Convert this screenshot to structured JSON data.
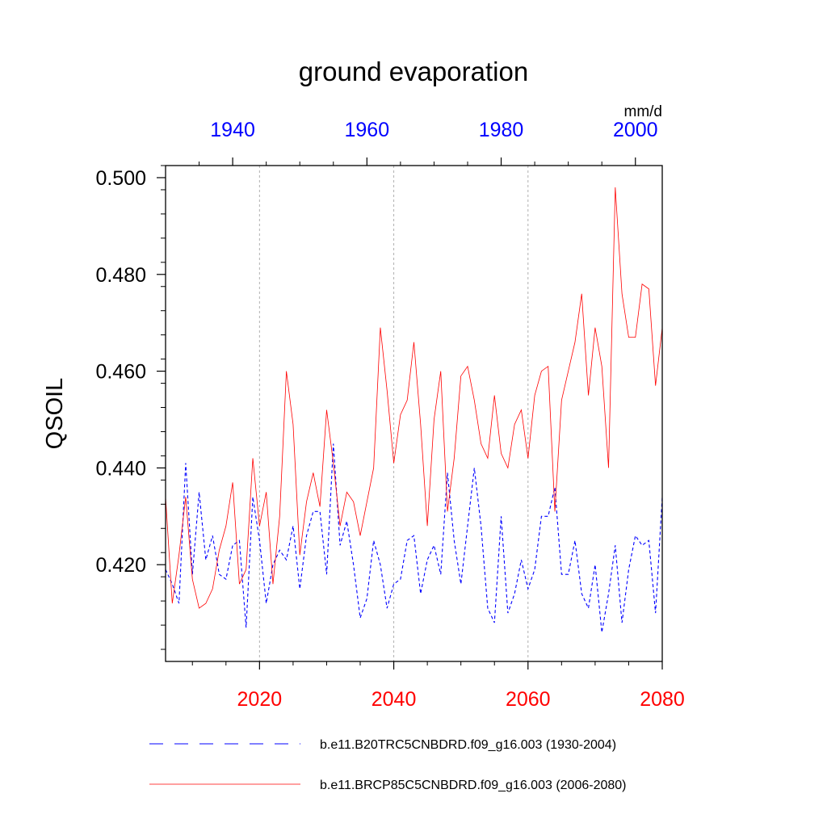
{
  "chart_data": {
    "type": "line",
    "title": "ground evaporation",
    "ylabel": "QSOIL",
    "units": "mm/d",
    "ylim": [
      0.4,
      0.5025
    ],
    "y_ticks": [
      0.42,
      0.44,
      0.46,
      0.48,
      0.5
    ],
    "y_tick_labels": [
      "0.420",
      "0.440",
      "0.460",
      "0.480",
      "0.500"
    ],
    "x_bottom": {
      "range": [
        2006,
        2080
      ],
      "ticks": [
        2020,
        2040,
        2060,
        2080
      ],
      "tick_labels": [
        "2020",
        "2040",
        "2060",
        "2080"
      ],
      "color": "#ff0000"
    },
    "x_top": {
      "range": [
        1930,
        2004
      ],
      "ticks": [
        1940,
        1960,
        1980,
        2000
      ],
      "tick_labels": [
        "1940",
        "1960",
        "1980",
        "2000"
      ],
      "color": "#0000ff"
    },
    "series": [
      {
        "name": "b.e11.B20TRC5CNBDRD.f09_g16.003 (1930-2004)",
        "axis": "top",
        "color": "#0000ff",
        "style": "dashed",
        "x_start": 1930,
        "values": [
          0.419,
          0.416,
          0.412,
          0.441,
          0.418,
          0.435,
          0.421,
          0.426,
          0.418,
          0.417,
          0.424,
          0.425,
          0.407,
          0.434,
          0.425,
          0.412,
          0.42,
          0.423,
          0.421,
          0.428,
          0.415,
          0.426,
          0.431,
          0.431,
          0.418,
          0.445,
          0.424,
          0.429,
          0.42,
          0.409,
          0.413,
          0.425,
          0.42,
          0.411,
          0.416,
          0.417,
          0.425,
          0.426,
          0.414,
          0.421,
          0.424,
          0.418,
          0.439,
          0.425,
          0.416,
          0.428,
          0.44,
          0.428,
          0.411,
          0.408,
          0.43,
          0.41,
          0.414,
          0.421,
          0.415,
          0.419,
          0.43,
          0.43,
          0.436,
          0.418,
          0.418,
          0.425,
          0.414,
          0.411,
          0.42,
          0.406,
          0.414,
          0.424,
          0.408,
          0.419,
          0.426,
          0.424,
          0.425,
          0.41,
          0.434
        ]
      },
      {
        "name": "b.e11.BRCP85C5CNBDRD.f09_g16.003 (2006-2080)",
        "axis": "bottom",
        "color": "#ff0000",
        "style": "solid",
        "x_start": 2006,
        "values": [
          0.434,
          0.412,
          0.422,
          0.434,
          0.417,
          0.411,
          0.412,
          0.415,
          0.423,
          0.428,
          0.437,
          0.416,
          0.419,
          0.442,
          0.428,
          0.435,
          0.416,
          0.43,
          0.46,
          0.449,
          0.422,
          0.433,
          0.439,
          0.432,
          0.452,
          0.441,
          0.428,
          0.435,
          0.433,
          0.426,
          0.433,
          0.44,
          0.469,
          0.456,
          0.441,
          0.451,
          0.454,
          0.466,
          0.449,
          0.428,
          0.45,
          0.46,
          0.431,
          0.442,
          0.459,
          0.461,
          0.454,
          0.445,
          0.442,
          0.455,
          0.443,
          0.44,
          0.449,
          0.452,
          0.442,
          0.455,
          0.46,
          0.461,
          0.431,
          0.454,
          0.46,
          0.466,
          0.476,
          0.455,
          0.469,
          0.461,
          0.44,
          0.498,
          0.476,
          0.467,
          0.467,
          0.478,
          0.477,
          0.457,
          0.469
        ]
      }
    ]
  }
}
